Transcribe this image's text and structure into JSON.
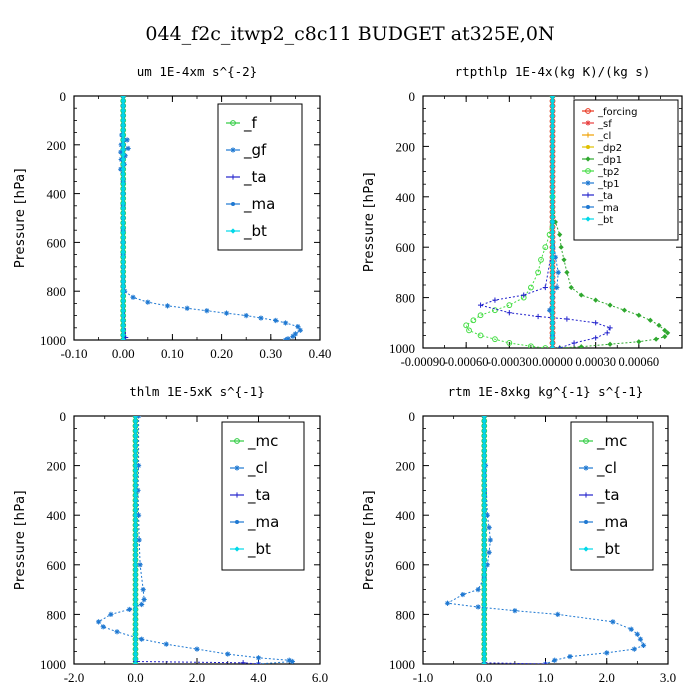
{
  "page_title": "044_f2c_itwp2_c8c11  BUDGET at325E,0N",
  "chart_data": [
    {
      "type": "line",
      "title": "um  1E-4xm s^{-2}",
      "ylabel": "Pressure [hPa]",
      "ylim": [
        1000,
        0
      ],
      "xlim": [
        -0.1,
        0.4
      ],
      "xticks": [
        "-0.10",
        "0.00",
        "0.10",
        "0.20",
        "0.30",
        "0.40"
      ],
      "xtick_values": [
        -0.1,
        0.0,
        0.1,
        0.2,
        0.3,
        0.4
      ],
      "yticks": [
        "0",
        "200",
        "400",
        "600",
        "800",
        "1000"
      ],
      "legend": [
        "_f",
        "_gf",
        "_ta",
        "_ma",
        "_bt"
      ],
      "legend_position": "top-right",
      "series": [
        {
          "name": "_f",
          "color": "#2ecc40",
          "x": [
            0.0,
            0.0,
            0.0,
            0.0,
            0.0,
            0.0,
            0.0,
            0.0,
            0.0,
            0.0,
            0.0
          ],
          "y": [
            0,
            100,
            200,
            300,
            400,
            500,
            600,
            700,
            800,
            900,
            1000
          ]
        },
        {
          "name": "_gf",
          "color": "#1e78d2",
          "x": [
            0.0,
            0.0,
            0.0,
            0.0,
            -0.003,
            0.008,
            -0.004,
            0.01,
            -0.005,
            0.004,
            -0.004,
            0.002,
            -0.005,
            0.0,
            0.0,
            0.0,
            0.0,
            0.0,
            0.0,
            0.0,
            0.0,
            0.0,
            0.0,
            0.0,
            0.003,
            0.02,
            0.05,
            0.09,
            0.13,
            0.17,
            0.21,
            0.25,
            0.28,
            0.31,
            0.33,
            0.355,
            0.36,
            0.35,
            0.345,
            0.335,
            0.33
          ],
          "y": [
            0,
            40,
            80,
            120,
            160,
            180,
            200,
            215,
            230,
            245,
            260,
            280,
            300,
            350,
            400,
            450,
            500,
            550,
            600,
            650,
            700,
            740,
            760,
            780,
            800,
            825,
            845,
            860,
            870,
            880,
            890,
            900,
            910,
            920,
            930,
            945,
            960,
            975,
            985,
            995,
            1000
          ]
        },
        {
          "name": "_ta",
          "color": "#2222cc",
          "x": [
            0.0,
            0.0,
            0.0,
            0.0,
            0.0,
            0.005,
            0.0
          ],
          "y": [
            0,
            200,
            400,
            600,
            800,
            990,
            1000
          ]
        },
        {
          "name": "_ma",
          "color": "#1e78d2",
          "x": [
            0.0,
            0.0,
            0.0,
            0.0,
            0.0,
            0.0
          ],
          "y": [
            0,
            200,
            400,
            600,
            800,
            1000
          ]
        },
        {
          "name": "_bt",
          "color": "#00d8e8",
          "x": [
            0.0,
            0.0,
            0.0,
            0.0,
            0.0,
            0.0
          ],
          "y": [
            0,
            200,
            400,
            600,
            800,
            1000
          ]
        }
      ]
    },
    {
      "type": "line",
      "title": "rtpthlp  1E-4x(kg K)/(kg s)",
      "ylabel": "Pressure [hPa]",
      "ylim": [
        1000,
        0
      ],
      "xlim": [
        -0.0009,
        0.0009
      ],
      "xticks": [
        "-0.00090",
        "-0.00060",
        "-0.00030",
        "0.00000",
        "0.00030",
        "0.00060"
      ],
      "xtick_values": [
        -0.0009,
        -0.0006,
        -0.0003,
        0.0,
        0.0003,
        0.0006
      ],
      "yticks": [
        "0",
        "200",
        "400",
        "600",
        "800",
        "1000"
      ],
      "legend": [
        "_forcing",
        "_sf",
        "_cl",
        "_dp2",
        "_dp1",
        "_tp2",
        "_tp1",
        "_ta",
        "_ma",
        "_bt"
      ],
      "legend_position": "top-right",
      "series": [
        {
          "name": "_forcing",
          "color": "#e8331c",
          "x": [
            0.0,
            0.0,
            0.0,
            0.0,
            0.0,
            0.0
          ],
          "y": [
            0,
            200,
            400,
            600,
            800,
            1000
          ]
        },
        {
          "name": "_sf",
          "color": "#e84040",
          "x": [
            0.0,
            0.0,
            0.0
          ],
          "y": [
            0,
            500,
            1000
          ]
        },
        {
          "name": "_cl",
          "color": "#f0a000",
          "x": [
            0.0,
            0.0,
            0.0
          ],
          "y": [
            0,
            500,
            1000
          ]
        },
        {
          "name": "_dp2",
          "color": "#e0c000",
          "x": [
            0.0,
            0.0,
            0.0
          ],
          "y": [
            0,
            500,
            1000
          ]
        },
        {
          "name": "_dp1",
          "color": "#2fa82f",
          "x": [
            0.0,
            0.0,
            0.0,
            2e-05,
            5e-05,
            6e-05,
            8e-05,
            0.0001,
            0.00013,
            0.0002,
            0.0003,
            0.0004,
            0.0005,
            0.0006,
            0.00068,
            0.00074,
            0.00078,
            0.0008,
            0.00078,
            0.00072,
            0.0006,
            0.0004,
            0.0002,
            5e-05
          ],
          "y": [
            0,
            200,
            400,
            500,
            550,
            600,
            650,
            700,
            760,
            790,
            810,
            830,
            850,
            870,
            890,
            910,
            930,
            940,
            955,
            965,
            975,
            985,
            995,
            1000
          ]
        },
        {
          "name": "_tp2",
          "color": "#44dd44",
          "x": [
            0.0,
            0.0,
            -2e-05,
            -5e-05,
            -8e-05,
            -0.0001,
            -0.00015,
            -0.0002,
            -0.0003,
            -0.0004,
            -0.0005,
            -0.00055,
            -0.0006,
            -0.00058,
            -0.0005,
            -0.0004,
            -0.0003,
            -0.00015,
            -5e-05
          ],
          "y": [
            0,
            400,
            550,
            600,
            650,
            700,
            760,
            800,
            830,
            850,
            870,
            890,
            910,
            930,
            950,
            965,
            980,
            993,
            1000
          ]
        },
        {
          "name": "_tp1",
          "color": "#1e78d2",
          "x": [
            0.0,
            0.0,
            2e-05,
            4e-05,
            3e-05,
            0.0,
            -2e-05,
            0.0,
            0.0,
            0.0
          ],
          "y": [
            0,
            500,
            640,
            700,
            760,
            800,
            850,
            900,
            950,
            1000
          ]
        },
        {
          "name": "_ta",
          "color": "#2222cc",
          "x": [
            0.0,
            0.0,
            -5e-05,
            -0.0002,
            -0.0004,
            -0.0005,
            -0.0003,
            -0.0001,
            0.0001,
            0.0003,
            0.0004,
            0.00038,
            0.0003,
            0.00015,
            5e-05
          ],
          "y": [
            0,
            600,
            760,
            790,
            810,
            830,
            860,
            875,
            885,
            900,
            920,
            940,
            960,
            980,
            1000
          ]
        },
        {
          "name": "_ma",
          "color": "#1e78d2",
          "x": [
            0.0,
            0.0,
            0.0
          ],
          "y": [
            0,
            500,
            1000
          ]
        },
        {
          "name": "_bt",
          "color": "#00d8e8",
          "x": [
            0.0,
            0.0,
            0.0
          ],
          "y": [
            0,
            500,
            1000
          ]
        }
      ]
    },
    {
      "type": "line",
      "title": "thlm  1E-5xK s^{-1}",
      "ylabel": "Pressure [hPa]",
      "ylim": [
        1000,
        0
      ],
      "xlim": [
        -2.0,
        6.0
      ],
      "xticks": [
        "-2.0",
        "0.0",
        "2.0",
        "4.0",
        "6.0"
      ],
      "xtick_values": [
        -2.0,
        0.0,
        2.0,
        4.0,
        6.0
      ],
      "yticks": [
        "0",
        "200",
        "400",
        "600",
        "800",
        "1000"
      ],
      "legend": [
        "_mc",
        "_cl",
        "_ta",
        "_ma",
        "_bt"
      ],
      "legend_position": "top-right",
      "series": [
        {
          "name": "_mc",
          "color": "#2ecc40",
          "x": [
            0.0,
            0.0,
            0.0,
            0.0,
            0.0,
            0.0
          ],
          "y": [
            0,
            200,
            400,
            600,
            800,
            1000
          ]
        },
        {
          "name": "_cl",
          "color": "#1e78d2",
          "x": [
            0.1,
            0.1,
            0.08,
            0.1,
            0.12,
            0.15,
            0.25,
            0.28,
            0.2,
            -0.2,
            -0.8,
            -1.2,
            -1.05,
            -0.6,
            0.2,
            1.0,
            2.0,
            3.0,
            4.0,
            5.0,
            5.1,
            4.0
          ],
          "y": [
            0,
            200,
            300,
            400,
            500,
            600,
            700,
            740,
            760,
            780,
            800,
            830,
            850,
            870,
            900,
            920,
            940,
            960,
            975,
            985,
            990,
            1000
          ]
        },
        {
          "name": "_ta",
          "color": "#2222cc",
          "x": [
            0.0,
            0.0,
            0.0,
            0.0,
            3.5,
            4.0
          ],
          "y": [
            0,
            400,
            800,
            990,
            995,
            1000
          ]
        },
        {
          "name": "_ma",
          "color": "#1e78d2",
          "x": [
            0.0,
            0.0,
            0.0
          ],
          "y": [
            0,
            500,
            1000
          ]
        },
        {
          "name": "_bt",
          "color": "#00d8e8",
          "x": [
            0.0,
            0.0,
            0.0
          ],
          "y": [
            0,
            500,
            1000
          ]
        }
      ]
    },
    {
      "type": "line",
      "title": "rtm  1E-8xkg kg^{-1} s^{-1}",
      "ylabel": "Pressure [hPa]",
      "ylim": [
        1000,
        0
      ],
      "xlim": [
        -1.0,
        3.0
      ],
      "xticks": [
        "-1.0",
        "0.0",
        "1.0",
        "2.0",
        "3.0"
      ],
      "xtick_values": [
        -1.0,
        0.0,
        1.0,
        2.0,
        3.0
      ],
      "yticks": [
        "0",
        "200",
        "400",
        "600",
        "800",
        "1000"
      ],
      "legend": [
        "_mc",
        "_cl",
        "_ta",
        "_ma",
        "_bt"
      ],
      "legend_position": "top-right",
      "series": [
        {
          "name": "_mc",
          "color": "#2ecc40",
          "x": [
            0.0,
            0.0,
            0.0,
            0.0,
            0.0,
            0.0
          ],
          "y": [
            0,
            200,
            400,
            600,
            800,
            1000
          ]
        },
        {
          "name": "_cl",
          "color": "#1e78d2",
          "x": [
            0.0,
            0.02,
            0.05,
            0.08,
            0.1,
            0.08,
            0.05,
            0.0,
            -0.1,
            -0.35,
            -0.6,
            -0.1,
            0.5,
            1.2,
            2.1,
            2.4,
            2.5,
            2.55,
            2.6,
            2.45,
            2.0,
            1.4,
            1.15,
            1.0
          ],
          "y": [
            0,
            200,
            400,
            450,
            500,
            550,
            600,
            650,
            700,
            720,
            755,
            770,
            785,
            800,
            830,
            860,
            880,
            900,
            925,
            940,
            955,
            970,
            985,
            1000
          ]
        },
        {
          "name": "_ta",
          "color": "#2222cc",
          "x": [
            0.0,
            0.0,
            0.0,
            0.0,
            1.0
          ],
          "y": [
            0,
            400,
            800,
            995,
            1000
          ]
        },
        {
          "name": "_ma",
          "color": "#1e78d2",
          "x": [
            0.0,
            0.0,
            0.0
          ],
          "y": [
            0,
            500,
            1000
          ]
        },
        {
          "name": "_bt",
          "color": "#00d8e8",
          "x": [
            0.0,
            0.0,
            0.0
          ],
          "y": [
            0,
            500,
            1000
          ]
        }
      ]
    }
  ]
}
